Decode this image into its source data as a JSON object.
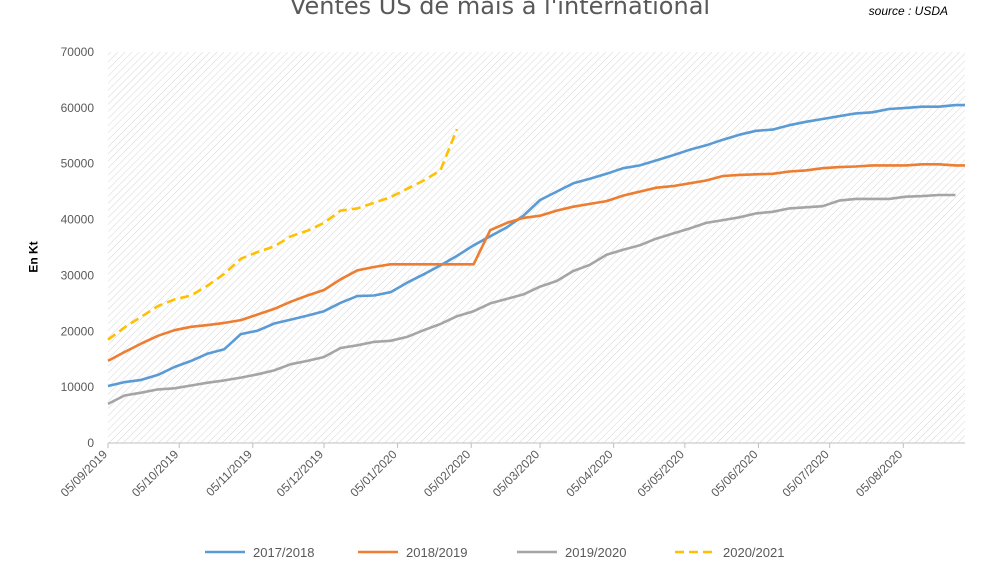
{
  "chart_data": {
    "type": "line",
    "title": "Ventes US de maïs à l'international",
    "source": "source : USDA",
    "ylabel": "En Kt",
    "ylim": [
      0,
      70000
    ],
    "yticks": [
      0,
      10000,
      20000,
      30000,
      40000,
      50000,
      60000,
      70000
    ],
    "ytick_labels": [
      "0",
      "10000",
      "20000",
      "30000",
      "40000",
      "50000",
      "60000",
      "70000"
    ],
    "x_start": "2019-09-05",
    "x_end": "2020-08-31",
    "xtick_dates": [
      "2019-09-05",
      "2019-10-05",
      "2019-11-05",
      "2019-12-05",
      "2020-01-05",
      "2020-02-05",
      "2020-03-05",
      "2020-04-05",
      "2020-05-05",
      "2020-06-05",
      "2020-07-05",
      "2020-08-05"
    ],
    "xtick_labels": [
      "05/09/2019",
      "05/10/2019",
      "05/11/2019",
      "05/12/2019",
      "05/01/2020",
      "05/02/2020",
      "05/03/2020",
      "05/04/2020",
      "05/05/2020",
      "05/06/2020",
      "05/07/2020",
      "05/08/2020"
    ],
    "legend_position": "bottom",
    "grid": false,
    "background": "diagonal hatching",
    "series": [
      {
        "name": "2017/2018",
        "color": "#5B9BD5",
        "dash": false,
        "points": [
          [
            "2019-09-05",
            10200
          ],
          [
            "2019-09-12",
            10900
          ],
          [
            "2019-09-19",
            11300
          ],
          [
            "2019-09-26",
            12200
          ],
          [
            "2019-10-03",
            13600
          ],
          [
            "2019-10-10",
            14700
          ],
          [
            "2019-10-17",
            16000
          ],
          [
            "2019-10-24",
            16800
          ],
          [
            "2019-10-31",
            19500
          ],
          [
            "2019-11-07",
            20100
          ],
          [
            "2019-11-14",
            21400
          ],
          [
            "2019-11-21",
            22100
          ],
          [
            "2019-11-28",
            22800
          ],
          [
            "2019-12-05",
            23600
          ],
          [
            "2019-12-12",
            25100
          ],
          [
            "2019-12-19",
            26300
          ],
          [
            "2019-12-26",
            26400
          ],
          [
            "2020-01-02",
            27000
          ],
          [
            "2020-01-09",
            28700
          ],
          [
            "2020-01-16",
            30200
          ],
          [
            "2020-01-23",
            31800
          ],
          [
            "2020-01-30",
            33500
          ],
          [
            "2020-02-06",
            35400
          ],
          [
            "2020-02-13",
            37000
          ],
          [
            "2020-02-20",
            38600
          ],
          [
            "2020-02-27",
            40700
          ],
          [
            "2020-03-05",
            43500
          ],
          [
            "2020-03-12",
            45000
          ],
          [
            "2020-03-19",
            46500
          ],
          [
            "2020-03-26",
            47300
          ],
          [
            "2020-04-02",
            48200
          ],
          [
            "2020-04-09",
            49200
          ],
          [
            "2020-04-16",
            49700
          ],
          [
            "2020-04-23",
            50600
          ],
          [
            "2020-04-30",
            51500
          ],
          [
            "2020-05-07",
            52500
          ],
          [
            "2020-05-14",
            53300
          ],
          [
            "2020-05-21",
            54300
          ],
          [
            "2020-05-28",
            55200
          ],
          [
            "2020-06-04",
            55900
          ],
          [
            "2020-06-11",
            56100
          ],
          [
            "2020-06-18",
            56900
          ],
          [
            "2020-06-25",
            57500
          ],
          [
            "2020-07-02",
            58000
          ],
          [
            "2020-07-09",
            58500
          ],
          [
            "2020-07-16",
            59000
          ],
          [
            "2020-07-23",
            59200
          ],
          [
            "2020-07-30",
            59800
          ],
          [
            "2020-08-06",
            60000
          ],
          [
            "2020-08-13",
            60200
          ],
          [
            "2020-08-20",
            60200
          ],
          [
            "2020-08-27",
            60500
          ],
          [
            "2020-08-31",
            60500
          ]
        ]
      },
      {
        "name": "2018/2019",
        "color": "#ED7D31",
        "dash": false,
        "points": [
          [
            "2019-09-05",
            14700
          ],
          [
            "2019-09-12",
            16300
          ],
          [
            "2019-09-19",
            17800
          ],
          [
            "2019-09-26",
            19200
          ],
          [
            "2019-10-03",
            20200
          ],
          [
            "2019-10-10",
            20800
          ],
          [
            "2019-10-17",
            21100
          ],
          [
            "2019-10-24",
            21500
          ],
          [
            "2019-10-31",
            22000
          ],
          [
            "2019-11-07",
            23000
          ],
          [
            "2019-11-14",
            24000
          ],
          [
            "2019-11-21",
            25300
          ],
          [
            "2019-11-28",
            26400
          ],
          [
            "2019-12-05",
            27400
          ],
          [
            "2019-12-12",
            29300
          ],
          [
            "2019-12-19",
            30900
          ],
          [
            "2019-12-26",
            31500
          ],
          [
            "2020-01-02",
            32000
          ],
          [
            "2020-01-09",
            32000
          ],
          [
            "2020-01-16",
            32000
          ],
          [
            "2020-01-23",
            32000
          ],
          [
            "2020-01-30",
            32000
          ],
          [
            "2020-02-06",
            32000
          ],
          [
            "2020-02-13",
            38100
          ],
          [
            "2020-02-20",
            39400
          ],
          [
            "2020-02-27",
            40300
          ],
          [
            "2020-03-05",
            40700
          ],
          [
            "2020-03-12",
            41600
          ],
          [
            "2020-03-19",
            42300
          ],
          [
            "2020-03-26",
            42800
          ],
          [
            "2020-04-02",
            43300
          ],
          [
            "2020-04-09",
            44300
          ],
          [
            "2020-04-16",
            45000
          ],
          [
            "2020-04-23",
            45700
          ],
          [
            "2020-04-30",
            46000
          ],
          [
            "2020-05-07",
            46500
          ],
          [
            "2020-05-14",
            47000
          ],
          [
            "2020-05-21",
            47800
          ],
          [
            "2020-05-28",
            48000
          ],
          [
            "2020-06-04",
            48100
          ],
          [
            "2020-06-11",
            48200
          ],
          [
            "2020-06-18",
            48600
          ],
          [
            "2020-06-25",
            48800
          ],
          [
            "2020-07-02",
            49200
          ],
          [
            "2020-07-09",
            49400
          ],
          [
            "2020-07-16",
            49500
          ],
          [
            "2020-07-23",
            49700
          ],
          [
            "2020-07-30",
            49700
          ],
          [
            "2020-08-06",
            49700
          ],
          [
            "2020-08-13",
            49900
          ],
          [
            "2020-08-20",
            49900
          ],
          [
            "2020-08-27",
            49700
          ],
          [
            "2020-08-31",
            49700
          ]
        ]
      },
      {
        "name": "2019/2020",
        "color": "#A5A5A5",
        "dash": false,
        "points": [
          [
            "2019-09-05",
            7000
          ],
          [
            "2019-09-12",
            8500
          ],
          [
            "2019-09-19",
            9000
          ],
          [
            "2019-09-26",
            9600
          ],
          [
            "2019-10-03",
            9800
          ],
          [
            "2019-10-10",
            10300
          ],
          [
            "2019-10-17",
            10800
          ],
          [
            "2019-10-24",
            11200
          ],
          [
            "2019-10-31",
            11700
          ],
          [
            "2019-11-07",
            12300
          ],
          [
            "2019-11-14",
            13000
          ],
          [
            "2019-11-21",
            14100
          ],
          [
            "2019-11-28",
            14700
          ],
          [
            "2019-12-05",
            15400
          ],
          [
            "2019-12-12",
            17000
          ],
          [
            "2019-12-19",
            17500
          ],
          [
            "2019-12-26",
            18100
          ],
          [
            "2020-01-02",
            18300
          ],
          [
            "2020-01-09",
            19000
          ],
          [
            "2020-01-16",
            20200
          ],
          [
            "2020-01-23",
            21300
          ],
          [
            "2020-01-30",
            22700
          ],
          [
            "2020-02-06",
            23600
          ],
          [
            "2020-02-13",
            25000
          ],
          [
            "2020-02-20",
            25800
          ],
          [
            "2020-02-27",
            26600
          ],
          [
            "2020-03-05",
            28000
          ],
          [
            "2020-03-12",
            29000
          ],
          [
            "2020-03-19",
            30800
          ],
          [
            "2020-03-26",
            31900
          ],
          [
            "2020-04-02",
            33700
          ],
          [
            "2020-04-09",
            34600
          ],
          [
            "2020-04-16",
            35400
          ],
          [
            "2020-04-23",
            36600
          ],
          [
            "2020-04-30",
            37500
          ],
          [
            "2020-05-07",
            38400
          ],
          [
            "2020-05-14",
            39400
          ],
          [
            "2020-05-21",
            39900
          ],
          [
            "2020-05-28",
            40400
          ],
          [
            "2020-06-04",
            41100
          ],
          [
            "2020-06-11",
            41400
          ],
          [
            "2020-06-18",
            42000
          ],
          [
            "2020-06-25",
            42200
          ],
          [
            "2020-07-02",
            42400
          ],
          [
            "2020-07-09",
            43400
          ],
          [
            "2020-07-16",
            43700
          ],
          [
            "2020-07-23",
            43700
          ],
          [
            "2020-07-30",
            43700
          ],
          [
            "2020-08-06",
            44100
          ],
          [
            "2020-08-13",
            44200
          ],
          [
            "2020-08-20",
            44400
          ],
          [
            "2020-08-27",
            44400
          ]
        ]
      },
      {
        "name": "2020/2021",
        "color": "#FFC000",
        "dash": true,
        "points": [
          [
            "2019-09-05",
            18500
          ],
          [
            "2019-09-12",
            20700
          ],
          [
            "2019-09-19",
            22600
          ],
          [
            "2019-09-26",
            24500
          ],
          [
            "2019-10-03",
            25700
          ],
          [
            "2019-10-10",
            26400
          ],
          [
            "2019-10-17",
            28200
          ],
          [
            "2019-10-24",
            30300
          ],
          [
            "2019-10-31",
            33000
          ],
          [
            "2019-11-07",
            34200
          ],
          [
            "2019-11-14",
            35200
          ],
          [
            "2019-11-21",
            37000
          ],
          [
            "2019-11-28",
            38000
          ],
          [
            "2019-12-05",
            39400
          ],
          [
            "2019-12-12",
            41600
          ],
          [
            "2019-12-19",
            42000
          ],
          [
            "2019-12-26",
            43000
          ],
          [
            "2020-01-02",
            44000
          ],
          [
            "2020-01-09",
            45500
          ],
          [
            "2020-01-16",
            47000
          ],
          [
            "2020-01-23",
            48800
          ],
          [
            "2020-01-30",
            56200
          ]
        ]
      }
    ]
  }
}
